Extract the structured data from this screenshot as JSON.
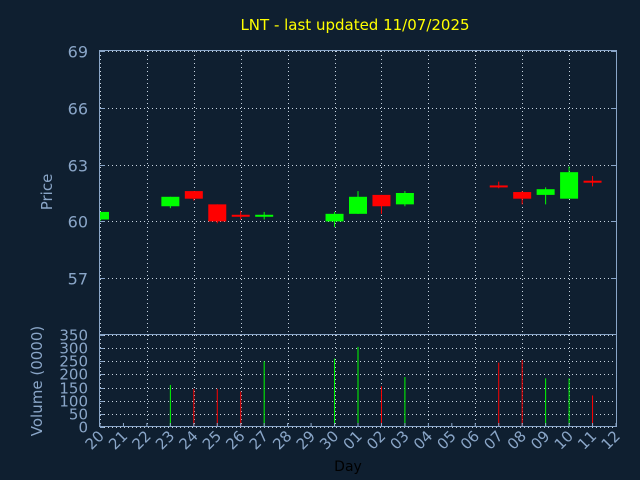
{
  "colors": {
    "background": "#0f1f30",
    "title": "#ffff00",
    "axis_text": "#8aa6c8",
    "frame": "#8aa6c8",
    "grid": "#c8d4e0",
    "up": "#00ff00",
    "down": "#ff0000",
    "label": "#000000"
  },
  "chart_data": {
    "type": "candlestick",
    "title": "LNT - last updated 11/07/2025",
    "price_panel": {
      "ylabel": "Price",
      "ylim": [
        54,
        69
      ],
      "yticks": [
        57,
        60,
        63,
        66,
        69
      ],
      "grid": true
    },
    "volume_panel": {
      "ylabel": "Volume (0000)",
      "ylim": [
        0,
        350
      ],
      "yticks": [
        0,
        50,
        100,
        150,
        200,
        250,
        300,
        350
      ],
      "grid": true
    },
    "xlabel": "Day",
    "x_ticks": [
      "20",
      "21",
      "22",
      "23",
      "24",
      "25",
      "26",
      "27",
      "28",
      "29",
      "30",
      "01",
      "02",
      "03",
      "04",
      "05",
      "06",
      "07",
      "08",
      "09",
      "10",
      "11",
      "12"
    ],
    "candles": [
      {
        "day": "20",
        "open": 60.1,
        "high": 60.5,
        "low": 60.0,
        "close": 60.5,
        "volume": 0
      },
      {
        "day": "23",
        "open": 60.8,
        "high": 61.3,
        "low": 60.7,
        "close": 61.3,
        "volume": 160
      },
      {
        "day": "24",
        "open": 61.6,
        "high": 61.6,
        "low": 61.1,
        "close": 61.2,
        "volume": 145
      },
      {
        "day": "25",
        "open": 60.9,
        "high": 60.9,
        "low": 59.9,
        "close": 60.0,
        "volume": 145
      },
      {
        "day": "26",
        "open": 60.35,
        "high": 60.55,
        "low": 60.1,
        "close": 60.25,
        "volume": 135
      },
      {
        "day": "27",
        "open": 60.25,
        "high": 60.5,
        "low": 60.1,
        "close": 60.35,
        "volume": 250
      },
      {
        "day": "30",
        "open": 60.0,
        "high": 60.5,
        "low": 59.7,
        "close": 60.4,
        "volume": 260
      },
      {
        "day": "01",
        "open": 60.4,
        "high": 61.6,
        "low": 60.4,
        "close": 61.3,
        "volume": 305
      },
      {
        "day": "02",
        "open": 61.4,
        "high": 61.4,
        "low": 60.4,
        "close": 60.8,
        "volume": 155
      },
      {
        "day": "03",
        "open": 60.9,
        "high": 61.6,
        "low": 60.8,
        "close": 61.5,
        "volume": 190
      },
      {
        "day": "07",
        "open": 61.9,
        "high": 62.1,
        "low": 61.75,
        "close": 61.85,
        "volume": 245
      },
      {
        "day": "08",
        "open": 61.55,
        "high": 61.6,
        "low": 60.9,
        "close": 61.2,
        "volume": 255
      },
      {
        "day": "09",
        "open": 61.4,
        "high": 61.8,
        "low": 60.9,
        "close": 61.7,
        "volume": 185
      },
      {
        "day": "10",
        "open": 61.2,
        "high": 62.9,
        "low": 61.2,
        "close": 62.6,
        "volume": 185
      },
      {
        "day": "11",
        "open": 62.15,
        "high": 62.4,
        "low": 61.85,
        "close": 62.05,
        "volume": 120
      }
    ]
  }
}
